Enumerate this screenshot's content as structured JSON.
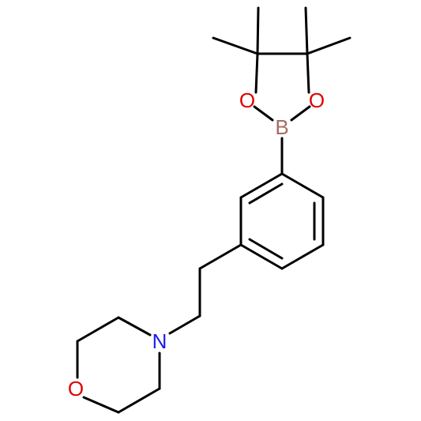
{
  "atoms": [
    {
      "label": "O"
    },
    {
      "label": "O"
    },
    {
      "label": "B"
    },
    {
      "label": "N"
    },
    {
      "label": "O"
    }
  ]
}
